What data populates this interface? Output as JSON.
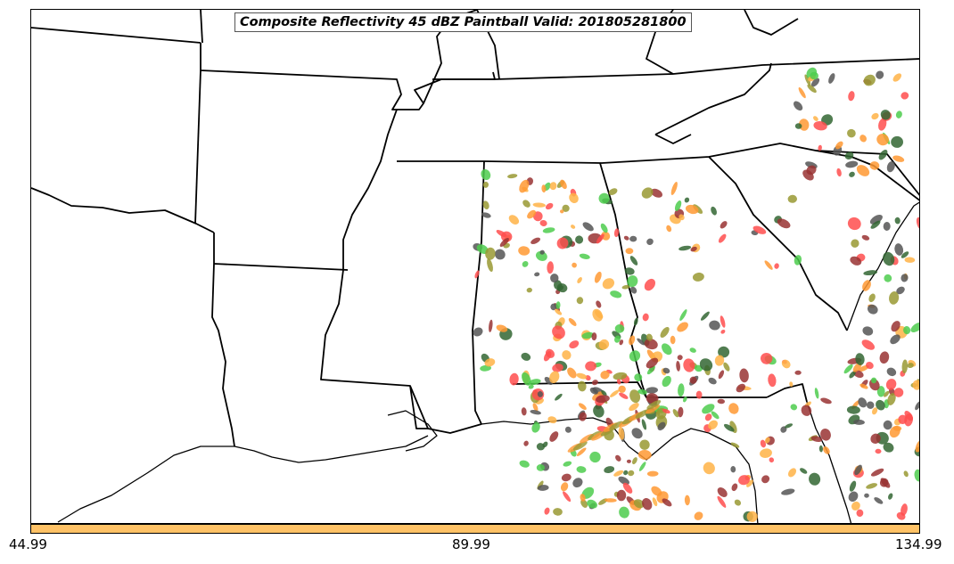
{
  "title": "Composite Reflectivity 45 dBZ Paintball Valid: 201805281800",
  "colorbar": {
    "color": "#ffc266",
    "ticks": [
      "44.99",
      "89.99",
      "134.99"
    ]
  },
  "map": {
    "region": "Southeastern United States",
    "land_color": "#ffffff",
    "boundary_color": "#000000",
    "paintball_colors": [
      "#ff4d4d",
      "#4dcc4d",
      "#993333",
      "#ff9933",
      "#999933",
      "#ffb347",
      "#336633",
      "#555555"
    ]
  }
}
